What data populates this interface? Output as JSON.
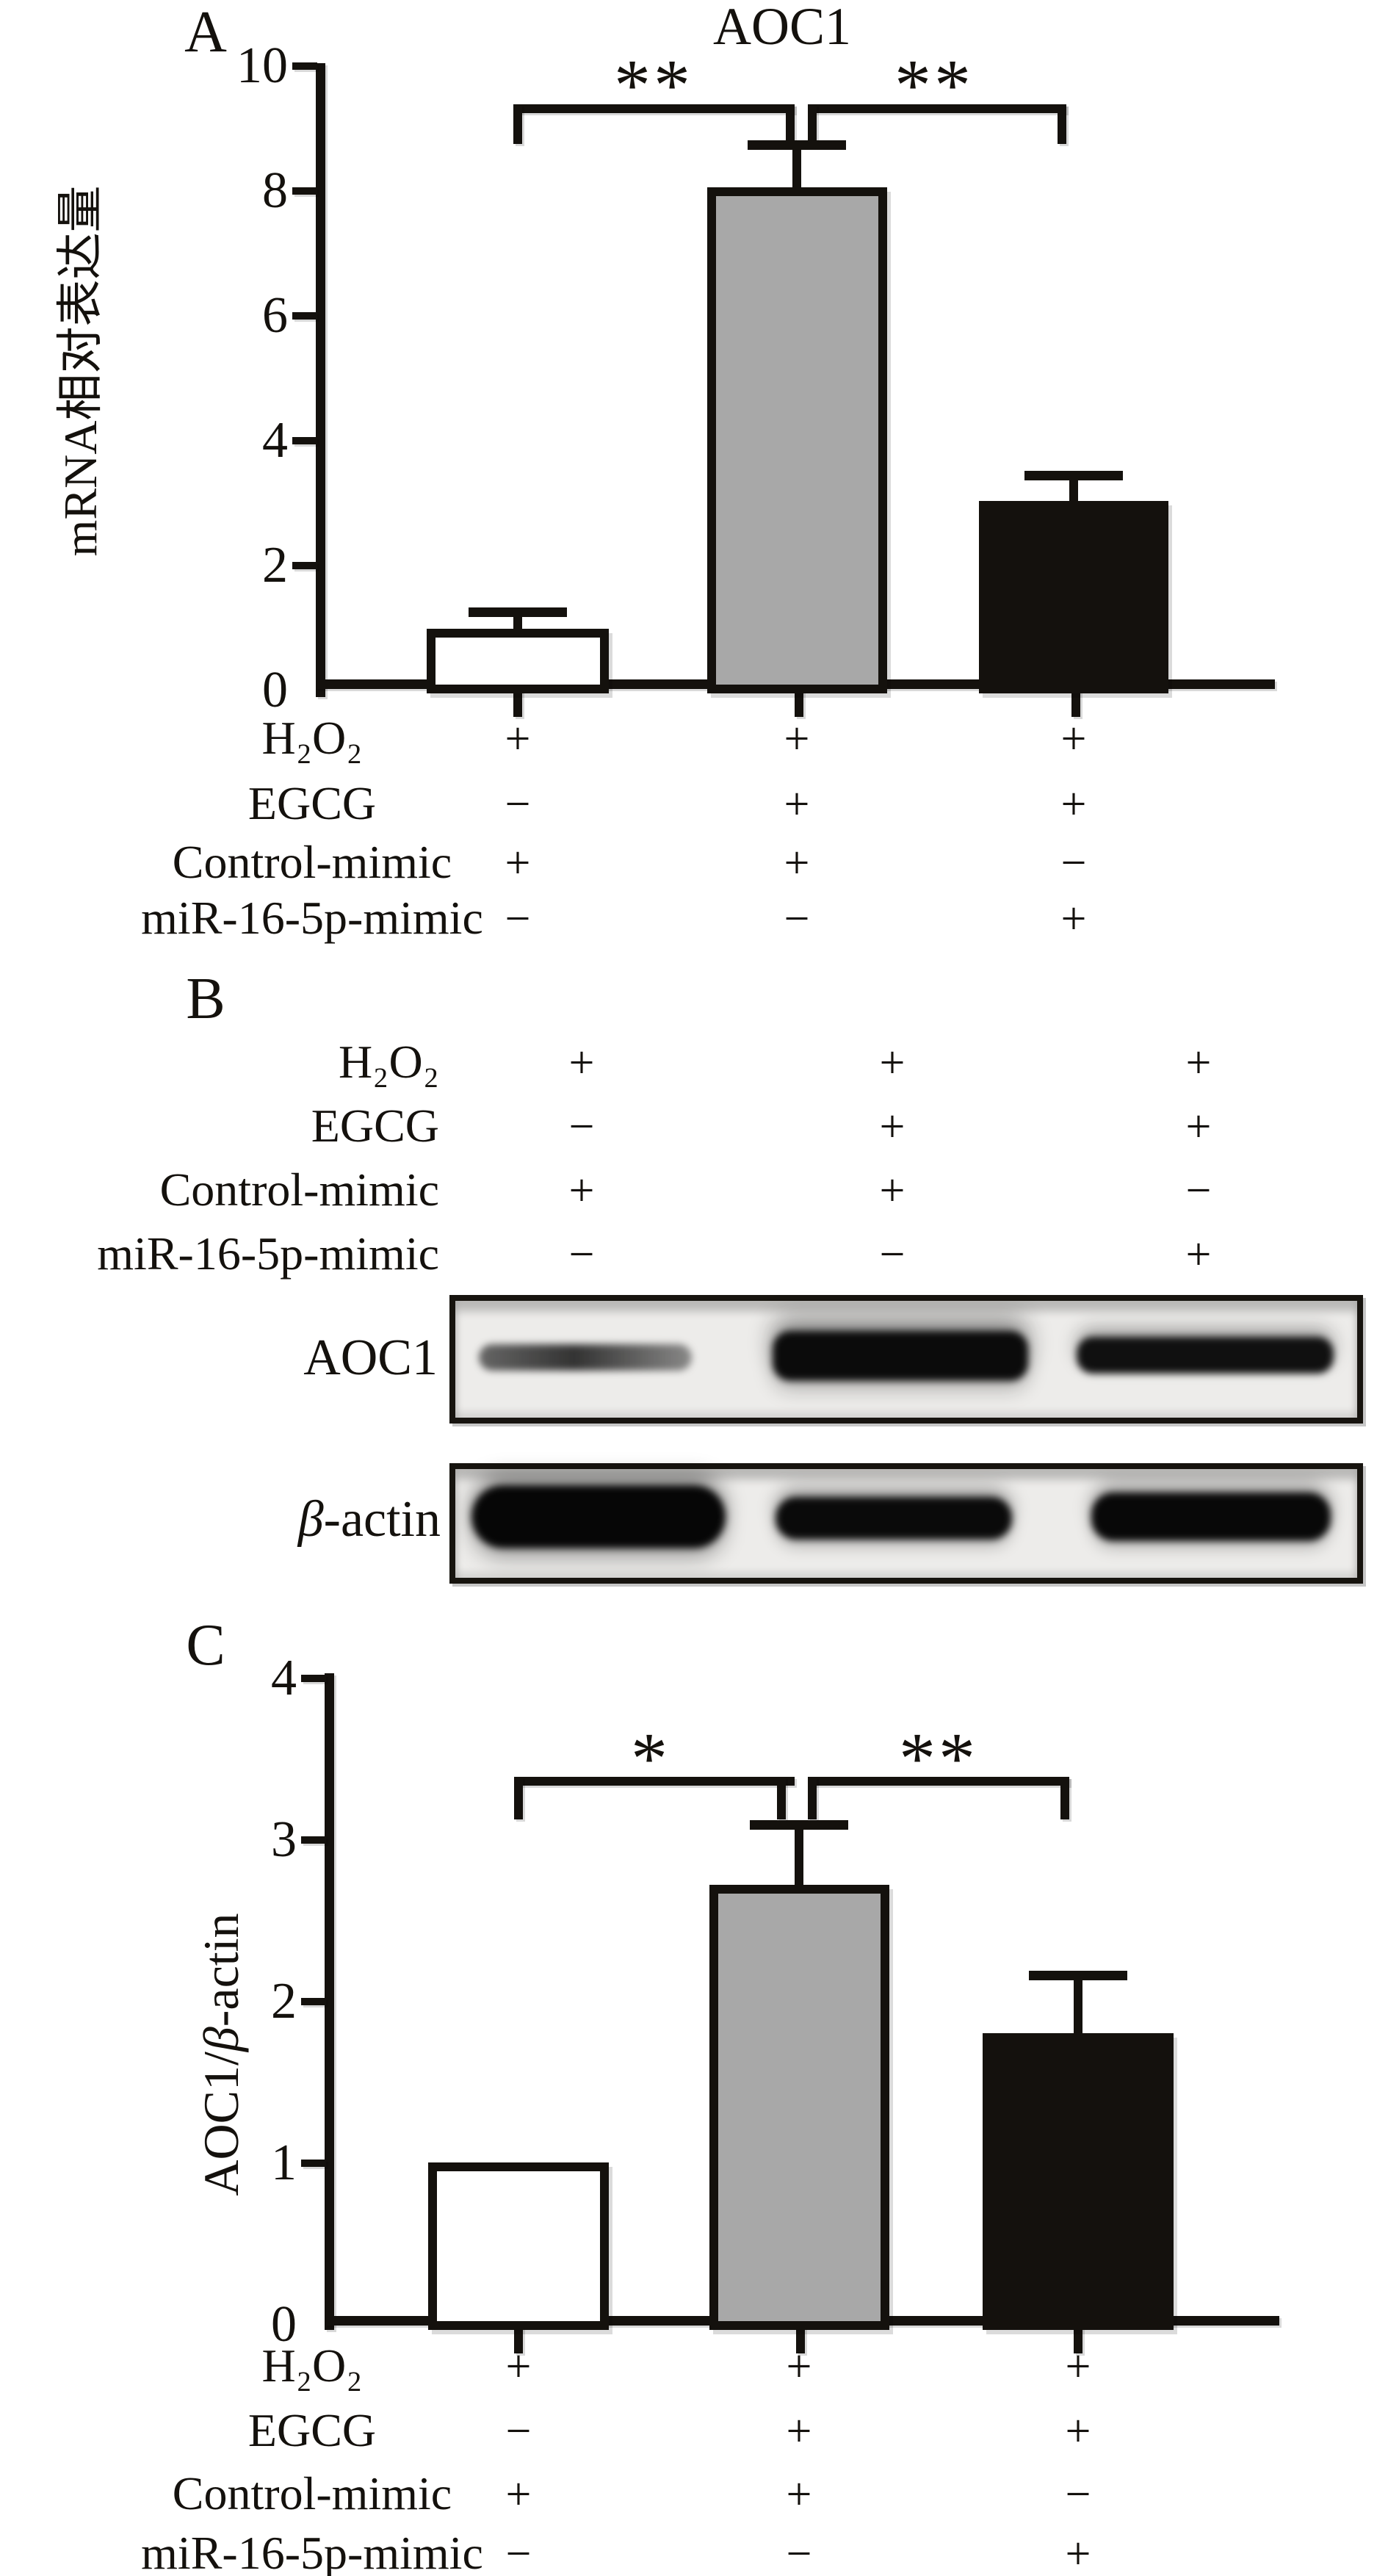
{
  "colors": {
    "ink": "#14110d",
    "gray_bar": "#a8a8a8",
    "white_bar": "#ffffff",
    "black_bar": "#14110d",
    "strip_background": "#edecea"
  },
  "panelA": {
    "label": "A",
    "title": "AOC1",
    "ylabel": "mRNA相对表达量",
    "yticks": [
      "10",
      "8",
      "6",
      "4",
      "2",
      "0"
    ],
    "sig": [
      "**",
      "**"
    ]
  },
  "panelB": {
    "label": "B",
    "blot1_label": "AOC1",
    "blot2_beta": "β",
    "blot2_suffix": "-actin"
  },
  "panelC": {
    "label": "C",
    "ylabel_pre": "AOC1/",
    "ylabel_beta": "β",
    "ylabel_suffix": "-actin",
    "yticks": [
      "4",
      "3",
      "2",
      "1",
      "0"
    ],
    "sig": [
      "*",
      "**"
    ]
  },
  "conditions": {
    "rows": [
      {
        "label": "H₂O₂",
        "values": [
          "+",
          "+",
          "+"
        ]
      },
      {
        "label": "EGCG",
        "values": [
          "−",
          "+",
          "+"
        ]
      },
      {
        "label": "Control-mimic",
        "values": [
          "+",
          "+",
          "−"
        ]
      },
      {
        "label": "miR-16-5p-mimic",
        "values": [
          "−",
          "−",
          "+"
        ]
      }
    ]
  },
  "chart_data": [
    {
      "id": "A",
      "type": "bar",
      "title": "AOC1",
      "ylabel": "mRNA相对表达量",
      "ylim": [
        0,
        10
      ],
      "yticks": [
        0,
        2,
        4,
        6,
        8,
        10
      ],
      "grid": false,
      "categories": [
        "H2O2 + Control-mimic",
        "H2O2 + EGCG + Control-mimic",
        "H2O2 + EGCG + miR-16-5p-mimic"
      ],
      "values": [
        0.95,
        8.05,
        3.0
      ],
      "upper_error": [
        0.27,
        0.68,
        0.42
      ],
      "bar_fills": [
        "#ffffff",
        "#a8a8a8",
        "#14110d"
      ],
      "significance": [
        {
          "pair": [
            0,
            1
          ],
          "label": "**"
        },
        {
          "pair": [
            1,
            2
          ],
          "label": "**"
        }
      ],
      "groups": [
        {
          "H₂O₂": "+",
          "EGCG": "−",
          "Control-mimic": "+",
          "miR-16-5p-mimic": "−"
        },
        {
          "H₂O₂": "+",
          "EGCG": "+",
          "Control-mimic": "+",
          "miR-16-5p-mimic": "−"
        },
        {
          "H₂O₂": "+",
          "EGCG": "+",
          "Control-mimic": "−",
          "miR-16-5p-mimic": "+"
        }
      ]
    },
    {
      "id": "B",
      "type": "western-blot",
      "lanes": 3,
      "rows": [
        {
          "target": "AOC1",
          "band_intensity": [
            "weak",
            "very strong",
            "strong"
          ]
        },
        {
          "target": "β-actin",
          "band_intensity": [
            "very strong",
            "strong",
            "very strong"
          ]
        }
      ],
      "groups": [
        {
          "H₂O₂": "+",
          "EGCG": "−",
          "Control-mimic": "+",
          "miR-16-5p-mimic": "−"
        },
        {
          "H₂O₂": "+",
          "EGCG": "+",
          "Control-mimic": "+",
          "miR-16-5p-mimic": "−"
        },
        {
          "H₂O₂": "+",
          "EGCG": "+",
          "Control-mimic": "−",
          "miR-16-5p-mimic": "+"
        }
      ]
    },
    {
      "id": "C",
      "type": "bar",
      "title": "",
      "ylabel": "AOC1/β-actin",
      "ylim": [
        0,
        4
      ],
      "yticks": [
        0,
        1,
        2,
        3,
        4
      ],
      "grid": false,
      "categories": [
        "H2O2 + Control-mimic",
        "H2O2 + EGCG + Control-mimic",
        "H2O2 + EGCG + miR-16-5p-mimic"
      ],
      "values": [
        1.0,
        2.72,
        1.8
      ],
      "upper_error": [
        0,
        0.37,
        0.36
      ],
      "bar_fills": [
        "#ffffff",
        "#a8a8a8",
        "#14110d"
      ],
      "significance": [
        {
          "pair": [
            0,
            1
          ],
          "label": "*"
        },
        {
          "pair": [
            1,
            2
          ],
          "label": "**"
        }
      ],
      "groups": [
        {
          "H₂O₂": "+",
          "EGCG": "−",
          "Control-mimic": "+",
          "miR-16-5p-mimic": "−"
        },
        {
          "H₂O₂": "+",
          "EGCG": "+",
          "Control-mimic": "+",
          "miR-16-5p-mimic": "−"
        },
        {
          "H₂O₂": "+",
          "EGCG": "+",
          "Control-mimic": "−",
          "miR-16-5p-mimic": "+"
        }
      ]
    }
  ]
}
